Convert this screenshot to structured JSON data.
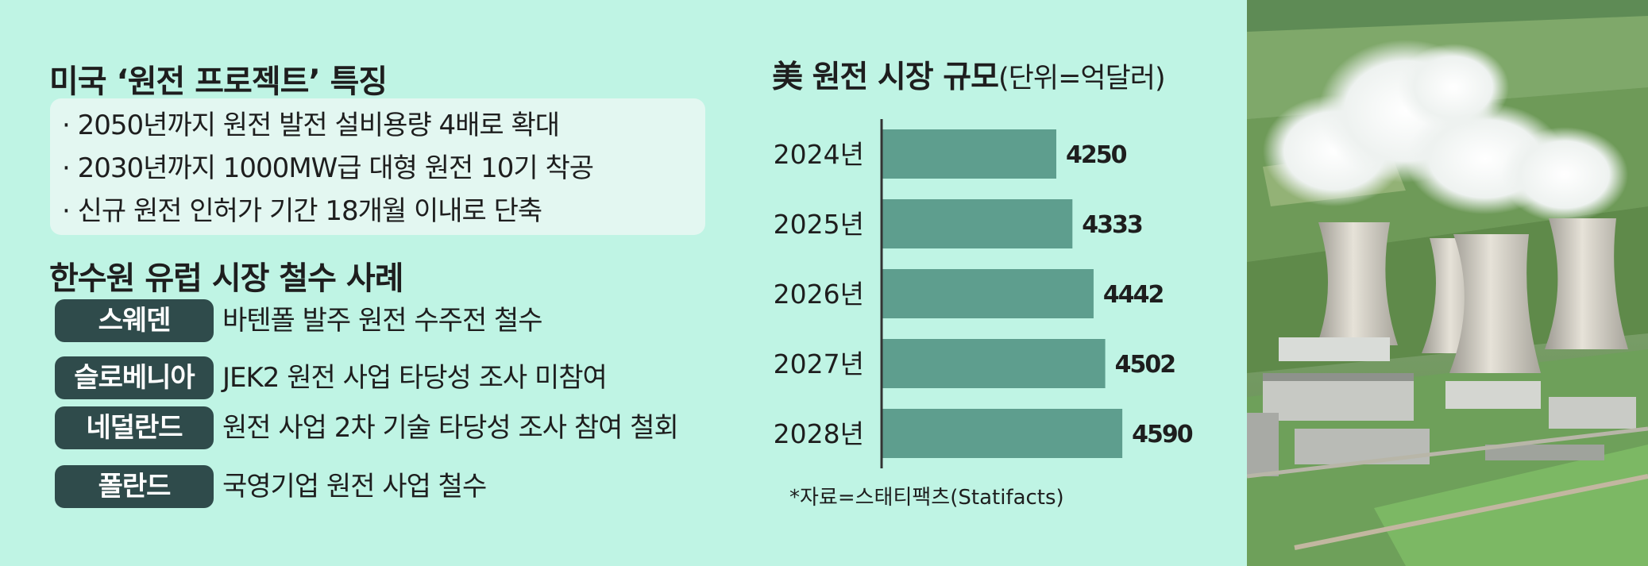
{
  "left": {
    "section1_title": "미국 ‘원전 프로젝트’ 특징",
    "notes": [
      "· 2050년까지 원전 발전 설비용량 4배로 확대",
      "· 2030년까지 1000MW급 대형 원전 10기 착공",
      "· 신규 원전 인허가 기간 18개월 이내로 단축"
    ],
    "section2_title": "한수원 유럽 시장 철수 사례",
    "cases": [
      {
        "country": "스웨덴",
        "text": "바텐폴 발주 원전 수주전 철수"
      },
      {
        "country": "슬로베니아",
        "text": "JEK2 원전 사업 타당성 조사 미참여"
      },
      {
        "country": "네덜란드",
        "text": "원전 사업 2차 기술 타당성 조사 참여 철회"
      },
      {
        "country": "폴란드",
        "text": "국영기업 원전 사업 철수"
      }
    ]
  },
  "chart_data": {
    "type": "bar",
    "orientation": "horizontal",
    "title": "美 원전 시장 규모",
    "unit_label": "(단위=억달러)",
    "categories": [
      "2024년",
      "2025년",
      "2026년",
      "2027년",
      "2028년"
    ],
    "values": [
      4250,
      4333,
      4442,
      4502,
      4590
    ],
    "data_labels": [
      "4250",
      "4333",
      "4442",
      "4502",
      "4590"
    ],
    "xlim": [
      3350,
      4700
    ],
    "grid": false,
    "bar_color": "#5e9e8e",
    "source": "*자료=스태티팩츠(Statifacts)"
  },
  "colors": {
    "background": "#bff4e4",
    "tag_fill": "#2f4b4b",
    "bar": "#5e9e8e"
  }
}
